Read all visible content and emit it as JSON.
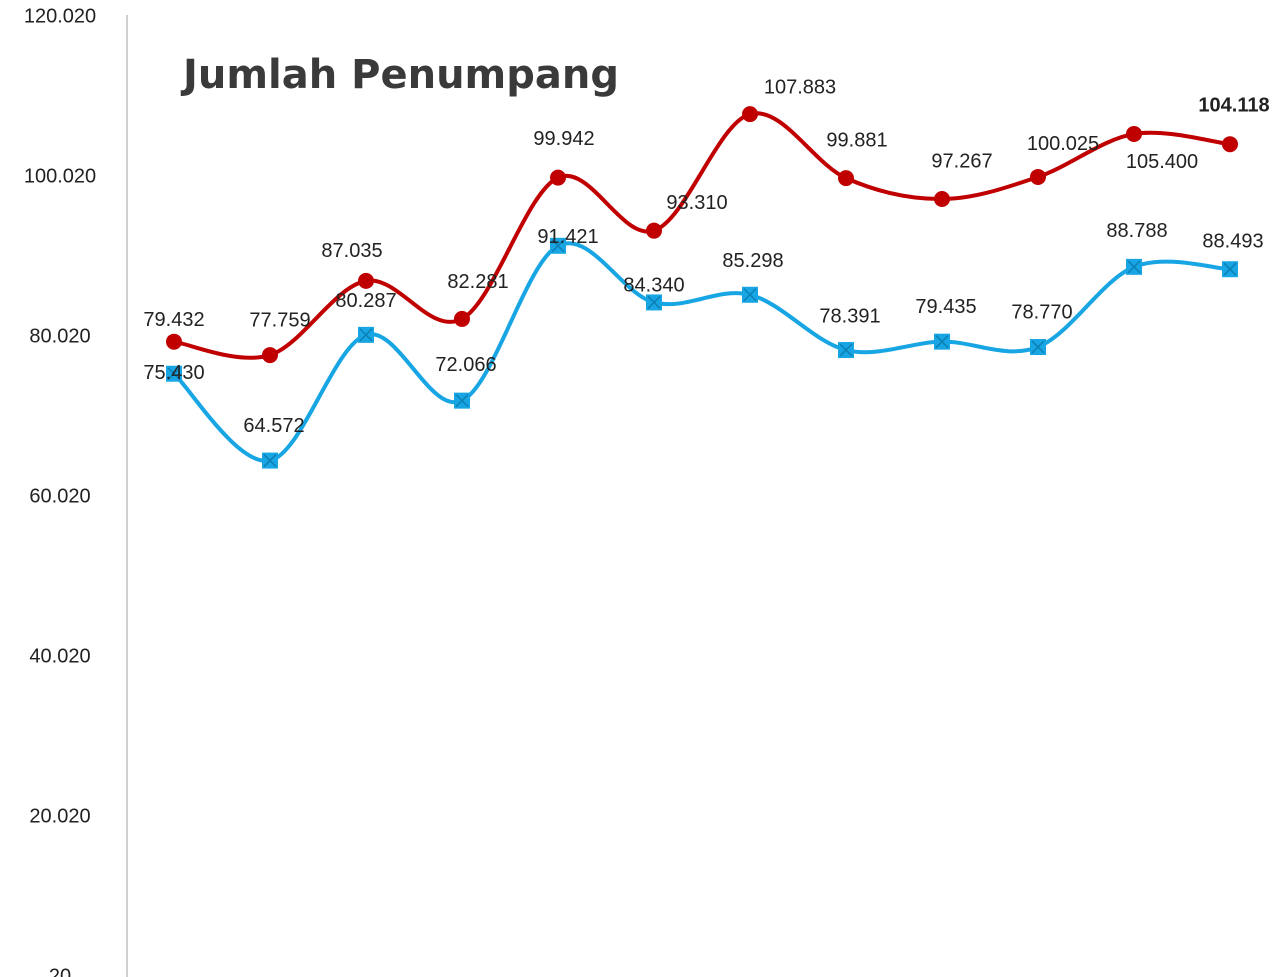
{
  "chart_data": {
    "type": "line",
    "title": "Jumlah Penumpang",
    "ylim": [
      20,
      120020
    ],
    "yticks": [
      20,
      {
        "value": 20020,
        "label": "20.020"
      },
      {
        "value": 40020,
        "label": "40.020"
      },
      {
        "value": 60020,
        "label": "60.020"
      },
      {
        "value": 80020,
        "label": "80.020"
      },
      {
        "value": 100020,
        "label": "100.020"
      },
      {
        "value": 120020,
        "label": "120.020"
      }
    ],
    "series": [
      {
        "color": "#c00000",
        "marker": "circle",
        "values": [
          79432,
          77759,
          87035,
          82281,
          99942,
          93310,
          107883,
          99881,
          97267,
          100025,
          105400,
          104118
        ],
        "value_labels": [
          "79.432",
          "77.759",
          "87.035",
          "82.281",
          "99.942",
          "93.310",
          "107.883",
          "99.881",
          "97.267",
          "100.025",
          "105.400",
          "104.118"
        ]
      },
      {
        "color": "#17a5e3",
        "marker": "square",
        "values": [
          75430,
          64572,
          80287,
          72066,
          91421,
          84340,
          85298,
          78391,
          79435,
          78770,
          88788,
          88493
        ],
        "value_labels": [
          "75.430",
          "64.572",
          "80.287",
          "72.066",
          "91.421",
          "84.340",
          "85.298",
          "78.391",
          "79.435",
          "78.770",
          "88.788",
          "88.493"
        ]
      }
    ]
  }
}
